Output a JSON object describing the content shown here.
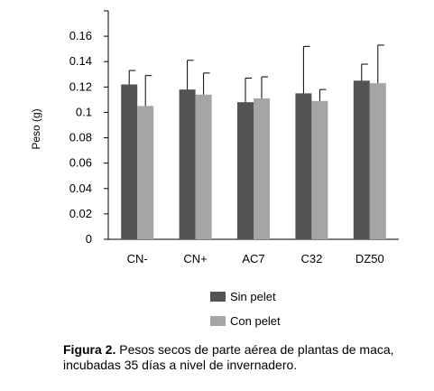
{
  "chart_data": {
    "type": "bar",
    "ylabel": "Peso (g)",
    "ylim": [
      0,
      0.18
    ],
    "yticks": [
      "0",
      "0.02",
      "0.04",
      "0.06",
      "0.08",
      "0.1",
      "0.12",
      "0.14",
      "0.16"
    ],
    "ytick_values": [
      0,
      0.02,
      0.04,
      0.06,
      0.08,
      0.1,
      0.12,
      0.14,
      0.16
    ],
    "categories": [
      "CN-",
      "CN+",
      "AC7",
      "C32",
      "DZ50"
    ],
    "series": [
      {
        "name": "Sin pelet",
        "color": "#545454",
        "values": [
          0.122,
          0.118,
          0.108,
          0.115,
          0.125
        ],
        "error": [
          0.011,
          0.023,
          0.019,
          0.037,
          0.013
        ]
      },
      {
        "name": "Con pelet",
        "color": "#a5a5a5",
        "values": [
          0.105,
          0.114,
          0.111,
          0.109,
          0.123
        ],
        "error": [
          0.024,
          0.017,
          0.017,
          0.009,
          0.03
        ]
      }
    ],
    "grid": false,
    "legend_position": "bottom"
  },
  "caption": {
    "label": "Figura 2.",
    "text": " Pesos secos de parte aérea de plantas de maca, incubadas 35 días a nivel de invernadero."
  }
}
